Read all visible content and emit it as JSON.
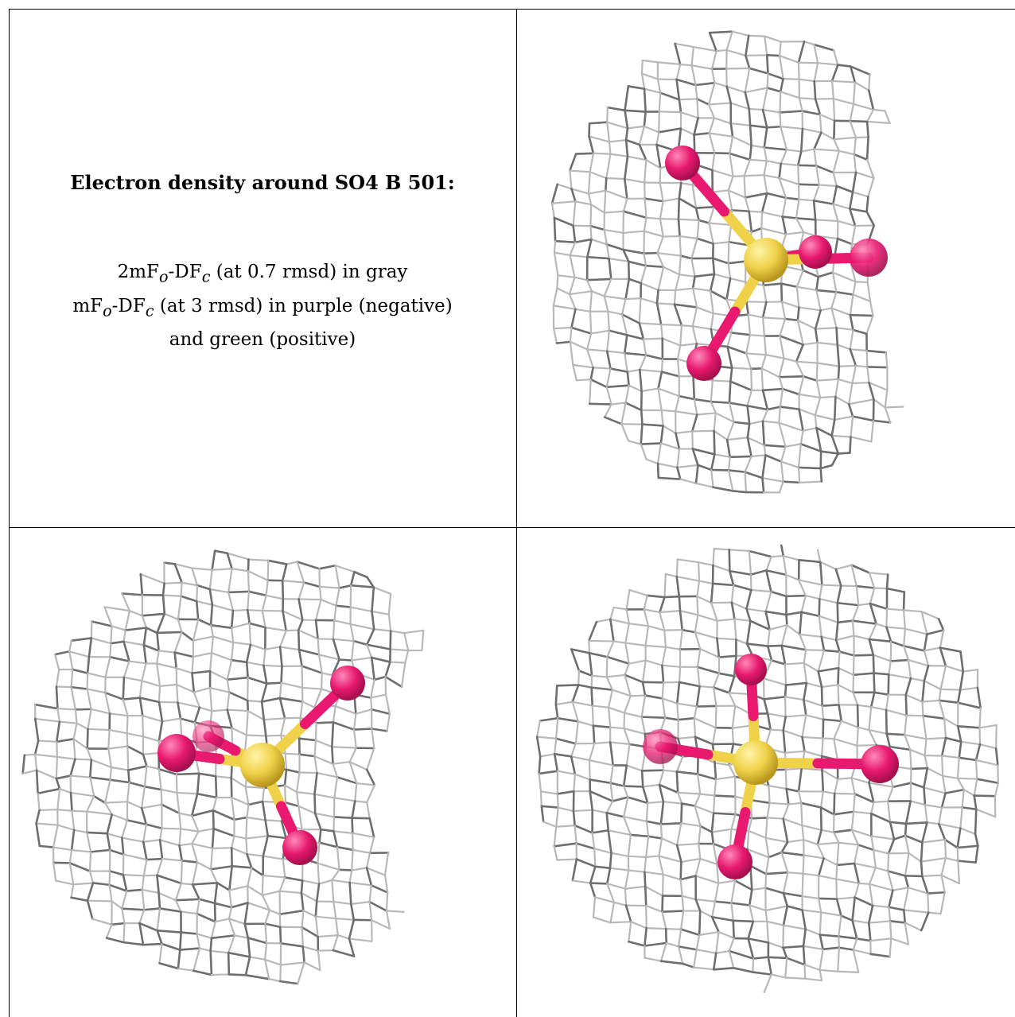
{
  "caption": {
    "title": "Electron density around SO4 B 501:",
    "line1": {
      "a": "2mF",
      "a_sub": "o",
      "b": "-DF",
      "b_sub": "c",
      "c": " (at 0.7 rmsd) in gray"
    },
    "line2": {
      "a": "mF",
      "a_sub": "o",
      "b": "-DF",
      "b_sub": "c",
      "c": " (at 3 rmsd) in purple (negative)"
    },
    "line3": "and green (positive)"
  },
  "colors": {
    "mesh_gray": "#b8b8b8",
    "mesh_dark": "#6e6e6e",
    "oxygen": "#e8196e",
    "sulfur": "#f0d24a",
    "border": "#000000"
  },
  "views": [
    {
      "name": "view-top-right",
      "mesh": "2mFo-DFc",
      "ligand": "SO4"
    },
    {
      "name": "view-bottom-left",
      "mesh": "2mFo-DFc",
      "ligand": "SO4"
    },
    {
      "name": "view-bottom-right",
      "mesh": "2mFo-DFc",
      "ligand": "SO4"
    }
  ]
}
